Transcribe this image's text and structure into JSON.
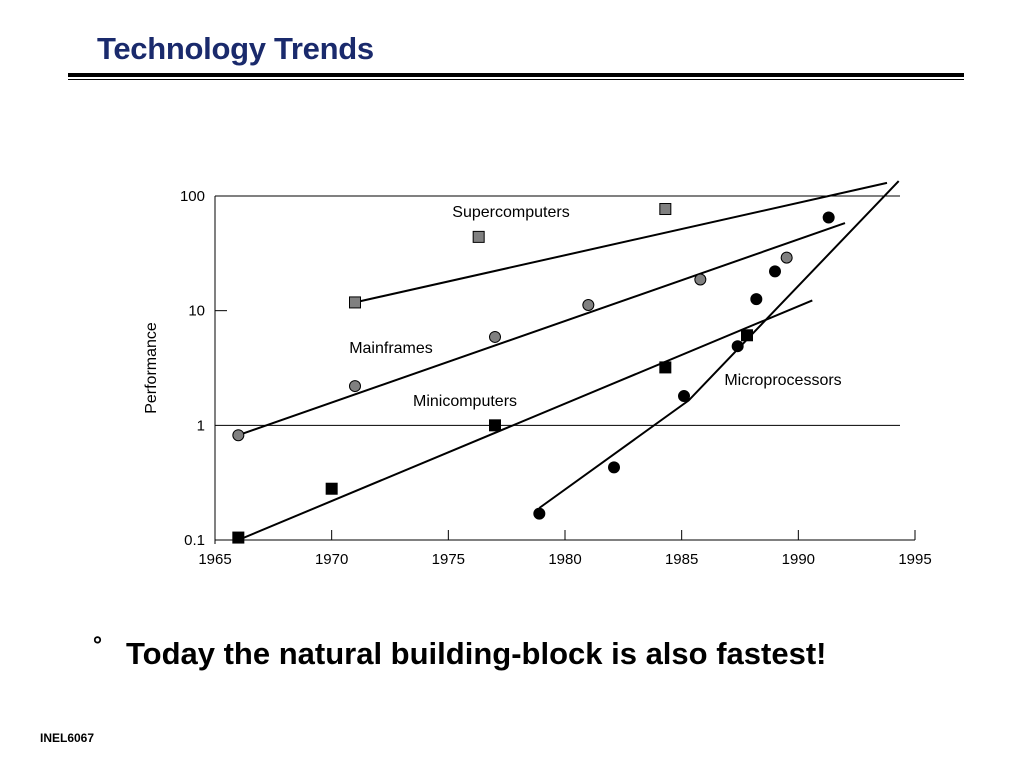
{
  "slide": {
    "title": "Technology Trends",
    "bullet_symbol": "°",
    "bullet_text": "Today the natural building-block is also fastest!",
    "footer": "INEL6067"
  },
  "chart_data": {
    "type": "scatter",
    "title": "",
    "xlabel": "",
    "ylabel": "Performance",
    "xlim": [
      1965,
      1995
    ],
    "ylim": [
      0.1,
      100
    ],
    "yscale": "log",
    "x_ticks": [
      "1965",
      "1970",
      "1975",
      "1980",
      "1985",
      "1990",
      "1995"
    ],
    "y_ticks": [
      "0.1",
      "1",
      "10",
      "100"
    ],
    "colors": {
      "gray_marker": "#808080",
      "black_marker": "#000000",
      "line": "#000000"
    },
    "series": [
      {
        "name": "Supercomputers",
        "marker": "square",
        "fill": "#808080",
        "points": [
          [
            1971,
            11.8
          ],
          [
            1976.3,
            44
          ],
          [
            1984.3,
            77
          ]
        ],
        "trend": [
          [
            1971,
            11.8
          ],
          [
            1993.8,
            130
          ]
        ]
      },
      {
        "name": "Mainframes",
        "marker": "circle",
        "fill": "#808080",
        "points": [
          [
            1966,
            0.82
          ],
          [
            1971,
            2.2
          ],
          [
            1977,
            5.9
          ],
          [
            1981,
            11.2
          ],
          [
            1985.8,
            18.7
          ],
          [
            1989.5,
            29
          ]
        ],
        "trend": [
          [
            1966,
            0.82
          ],
          [
            1992,
            58
          ]
        ]
      },
      {
        "name": "Minicomputers",
        "marker": "square",
        "fill": "#000000",
        "points": [
          [
            1966,
            0.105
          ],
          [
            1970,
            0.28
          ],
          [
            1977,
            1.0
          ],
          [
            1984.3,
            3.2
          ],
          [
            1987.8,
            6.1
          ]
        ],
        "trend": [
          [
            1966,
            0.1
          ],
          [
            1990.6,
            12.3
          ]
        ]
      },
      {
        "name": "Microprocessors",
        "marker": "circle",
        "fill": "#000000",
        "points": [
          [
            1978.9,
            0.17
          ],
          [
            1982.1,
            0.43
          ],
          [
            1985.1,
            1.8
          ],
          [
            1987.4,
            4.9
          ],
          [
            1988.2,
            12.6
          ],
          [
            1989,
            22
          ],
          [
            1991.3,
            65
          ]
        ],
        "trend": [
          [
            1978.9,
            0.19
          ],
          [
            1985.3,
            1.65
          ],
          [
            1994.3,
            135
          ]
        ]
      }
    ]
  }
}
